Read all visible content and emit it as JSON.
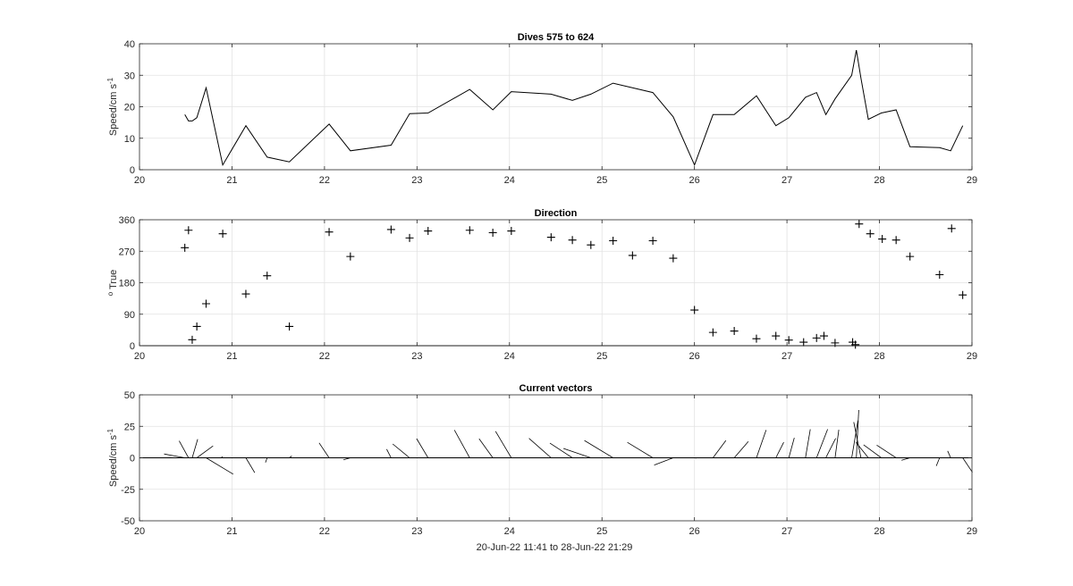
{
  "figure": {
    "xlabel": "20-Jun-22 11:41 to 28-Jun-22 21:29"
  },
  "chart_data": [
    {
      "type": "line",
      "title": "Dives 575 to 624",
      "ylabel": "Speed/cm s",
      "ylabel_superscript": "-1",
      "xlim": [
        20,
        29
      ],
      "ylim": [
        0,
        40
      ],
      "xticks": [
        "20",
        "21",
        "22",
        "23",
        "24",
        "25",
        "26",
        "27",
        "28",
        "29"
      ],
      "yticks": [
        "0",
        "10",
        "20",
        "30",
        "40"
      ],
      "grid": true,
      "series": [
        {
          "x": [
            20.49,
            20.53,
            20.57,
            20.62,
            20.72,
            20.9,
            21.15,
            21.38,
            21.62,
            22.05,
            22.28,
            22.72,
            22.92,
            23.12,
            23.57,
            23.82,
            24.02,
            24.45,
            24.68,
            24.88,
            25.12,
            25.55,
            25.77,
            26.0,
            26.2,
            26.43,
            26.67,
            26.88,
            27.02,
            27.2,
            27.32,
            27.42,
            27.52,
            27.7,
            27.75,
            27.8,
            27.88,
            28.02,
            28.18,
            28.33,
            28.65,
            28.77,
            28.9
          ],
          "y": [
            17.5,
            15.5,
            15.5,
            16.5,
            26,
            1.5,
            14,
            4,
            2.5,
            14.5,
            6,
            7.8,
            17.8,
            18,
            25.5,
            19,
            24.8,
            24,
            22,
            24,
            27.5,
            24.5,
            16.8,
            1.5,
            17.5,
            17.5,
            23.5,
            14,
            16.5,
            23,
            24.5,
            17.5,
            22.5,
            30,
            38,
            29,
            16,
            18,
            19,
            7.3,
            7,
            6,
            14
          ]
        }
      ]
    },
    {
      "type": "scatter",
      "title": "Direction",
      "ylabel": "True",
      "ylabel_superscript": "o",
      "marker": "+",
      "xlim": [
        20,
        29
      ],
      "ylim": [
        0,
        360
      ],
      "xticks": [
        "20",
        "21",
        "22",
        "23",
        "24",
        "25",
        "26",
        "27",
        "28",
        "29"
      ],
      "yticks": [
        "0",
        "90",
        "180",
        "270",
        "360"
      ],
      "grid": true,
      "series": [
        {
          "x": [
            20.49,
            20.53,
            20.57,
            20.62,
            20.72,
            20.9,
            21.15,
            21.38,
            21.62,
            22.05,
            22.28,
            22.72,
            22.92,
            23.12,
            23.57,
            23.82,
            24.02,
            24.45,
            24.68,
            24.88,
            25.12,
            25.33,
            25.55,
            25.77,
            26.0,
            26.2,
            26.43,
            26.67,
            26.88,
            27.02,
            27.18,
            27.32,
            27.4,
            27.52,
            27.71,
            27.74,
            27.78,
            27.9,
            28.03,
            28.18,
            28.33,
            28.65,
            28.78,
            28.9
          ],
          "y": [
            280,
            330,
            17,
            55,
            120,
            320,
            148,
            200,
            55,
            325,
            255,
            332,
            308,
            328,
            330,
            323,
            328,
            310,
            302,
            288,
            300,
            258,
            300,
            250,
            102,
            38,
            42,
            20,
            28,
            16,
            10,
            22,
            28,
            8,
            10,
            3,
            348,
            320,
            305,
            302,
            255,
            203,
            335,
            145
          ]
        }
      ]
    },
    {
      "type": "line",
      "subtype": "vector",
      "title": "Current vectors",
      "ylabel": "Speed/cm s",
      "ylabel_superscript": "-1",
      "xlim": [
        20,
        29
      ],
      "ylim": [
        -50,
        50
      ],
      "xticks": [
        "20",
        "21",
        "22",
        "23",
        "24",
        "25",
        "26",
        "27",
        "28",
        "29"
      ],
      "yticks": [
        "-50",
        "-25",
        "0",
        "25",
        "50"
      ],
      "grid": true,
      "series": [
        {
          "x": [
            20.49,
            20.53,
            20.57,
            20.62,
            20.72,
            20.9,
            21.15,
            21.38,
            21.62,
            22.05,
            22.28,
            22.72,
            22.92,
            23.12,
            23.57,
            23.82,
            24.02,
            24.45,
            24.68,
            24.88,
            25.12,
            25.55,
            25.77,
            26.0,
            26.2,
            26.43,
            26.67,
            26.88,
            27.02,
            27.2,
            27.32,
            27.42,
            27.52,
            27.7,
            27.75,
            27.8,
            27.88,
            28.02,
            28.18,
            28.33,
            28.65,
            28.77,
            28.9
          ],
          "speed": [
            17.5,
            15.5,
            15.5,
            16.5,
            26,
            1.5,
            14,
            4,
            2.5,
            14.5,
            6,
            7.8,
            17.8,
            18,
            25.5,
            19,
            24.8,
            24,
            22,
            24,
            27.5,
            24.5,
            16.8,
            1.5,
            17.5,
            17.5,
            23.5,
            14,
            16.5,
            23,
            24.5,
            17.5,
            22.5,
            30,
            38,
            29,
            16,
            18,
            19,
            7.3,
            7,
            6,
            14
          ],
          "direction": [
            280,
            330,
            17,
            55,
            120,
            320,
            148,
            200,
            55,
            325,
            255,
            332,
            308,
            328,
            330,
            323,
            328,
            310,
            302,
            288,
            300,
            300,
            250,
            102,
            38,
            42,
            20,
            28,
            16,
            10,
            22,
            28,
            8,
            10,
            3,
            348,
            320,
            305,
            302,
            255,
            203,
            335,
            145
          ]
        }
      ]
    }
  ]
}
